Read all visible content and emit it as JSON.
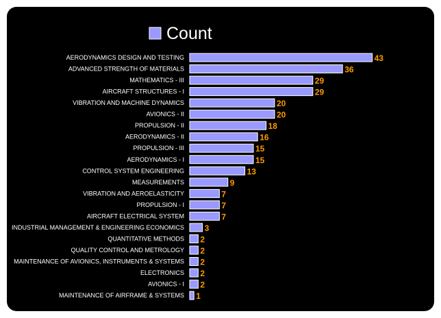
{
  "chart_data": {
    "type": "bar",
    "orientation": "horizontal",
    "legend": {
      "entries": [
        "Count"
      ],
      "position": "top"
    },
    "series": [
      {
        "name": "Count",
        "color": "#9999ff"
      }
    ],
    "categories": [
      "AERODYNAMICS DESIGN AND TESTING",
      "ADVANCED STRENGTH OF MATERIALS",
      "MATHEMATICS - III",
      "AIRCRAFT STRUCTURES - I",
      "VIBRATION AND MACHINE DYNAMICS",
      "AVIONICS - II",
      "PROPULSION - II",
      "AERODYNAMICS - II",
      "PROPULSION - III",
      "AERODYNAMICS - I",
      "CONTROL SYSTEM ENGINEERING",
      "MEASUREMENTS",
      "VIBRATION AND AEROELASTICITY",
      "PROPULSION - I",
      "AIRCRAFT ELECTRICAL SYSTEM",
      "INDUSTRIAL MANAGEMENT & ENGINEERING ECONOMICS",
      "QUANTITATIVE METHODS",
      "QUALITY CONTROL AND METROLOGY",
      "MAINTENANCE OF AVIONICS, INSTRUMENTS & SYSTEMS",
      "ELECTRONICS",
      "AVIONICS - I",
      "MAINTENANCE OF AIRFRAME & SYSTEMS"
    ],
    "values": [
      43,
      36,
      29,
      29,
      20,
      20,
      18,
      16,
      15,
      15,
      13,
      9,
      7,
      7,
      7,
      3,
      2,
      2,
      2,
      2,
      2,
      1
    ],
    "data_labels": true,
    "xlim": [
      0,
      43
    ],
    "grid": false,
    "colors": {
      "background": "#000000",
      "bar": "#9999ff",
      "bar_border": "#ffffff",
      "label": "#ffffff",
      "value_label": "#ff9900"
    }
  }
}
